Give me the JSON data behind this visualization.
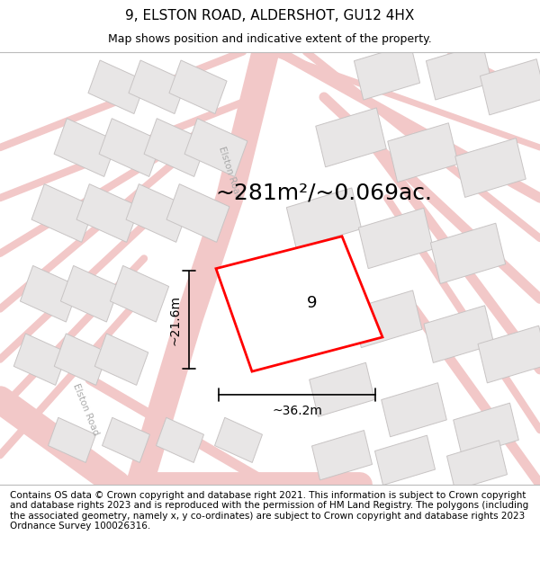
{
  "title": "9, ELSTON ROAD, ALDERSHOT, GU12 4HX",
  "subtitle": "Map shows position and indicative extent of the property.",
  "footer": "Contains OS data © Crown copyright and database right 2021. This information is subject to Crown copyright and database rights 2023 and is reproduced with the permission of HM Land Registry. The polygons (including the associated geometry, namely x, y co-ordinates) are subject to Crown copyright and database rights 2023 Ordnance Survey 100026316.",
  "area_label": "~281m²/~0.069ac.",
  "width_label": "~36.2m",
  "height_label": "~21.6m",
  "property_number": "9",
  "map_bg": "#f9f7f7",
  "road_color": "#f2c8c8",
  "road_outline": "#e8a8a8",
  "building_fill": "#e8e6e6",
  "building_edge": "#c8c4c4",
  "property_fill": "#ffffff",
  "property_edge": "#ff0000",
  "title_fontsize": 11,
  "subtitle_fontsize": 9,
  "footer_fontsize": 7.5,
  "area_fontsize": 18,
  "dim_fontsize": 10
}
